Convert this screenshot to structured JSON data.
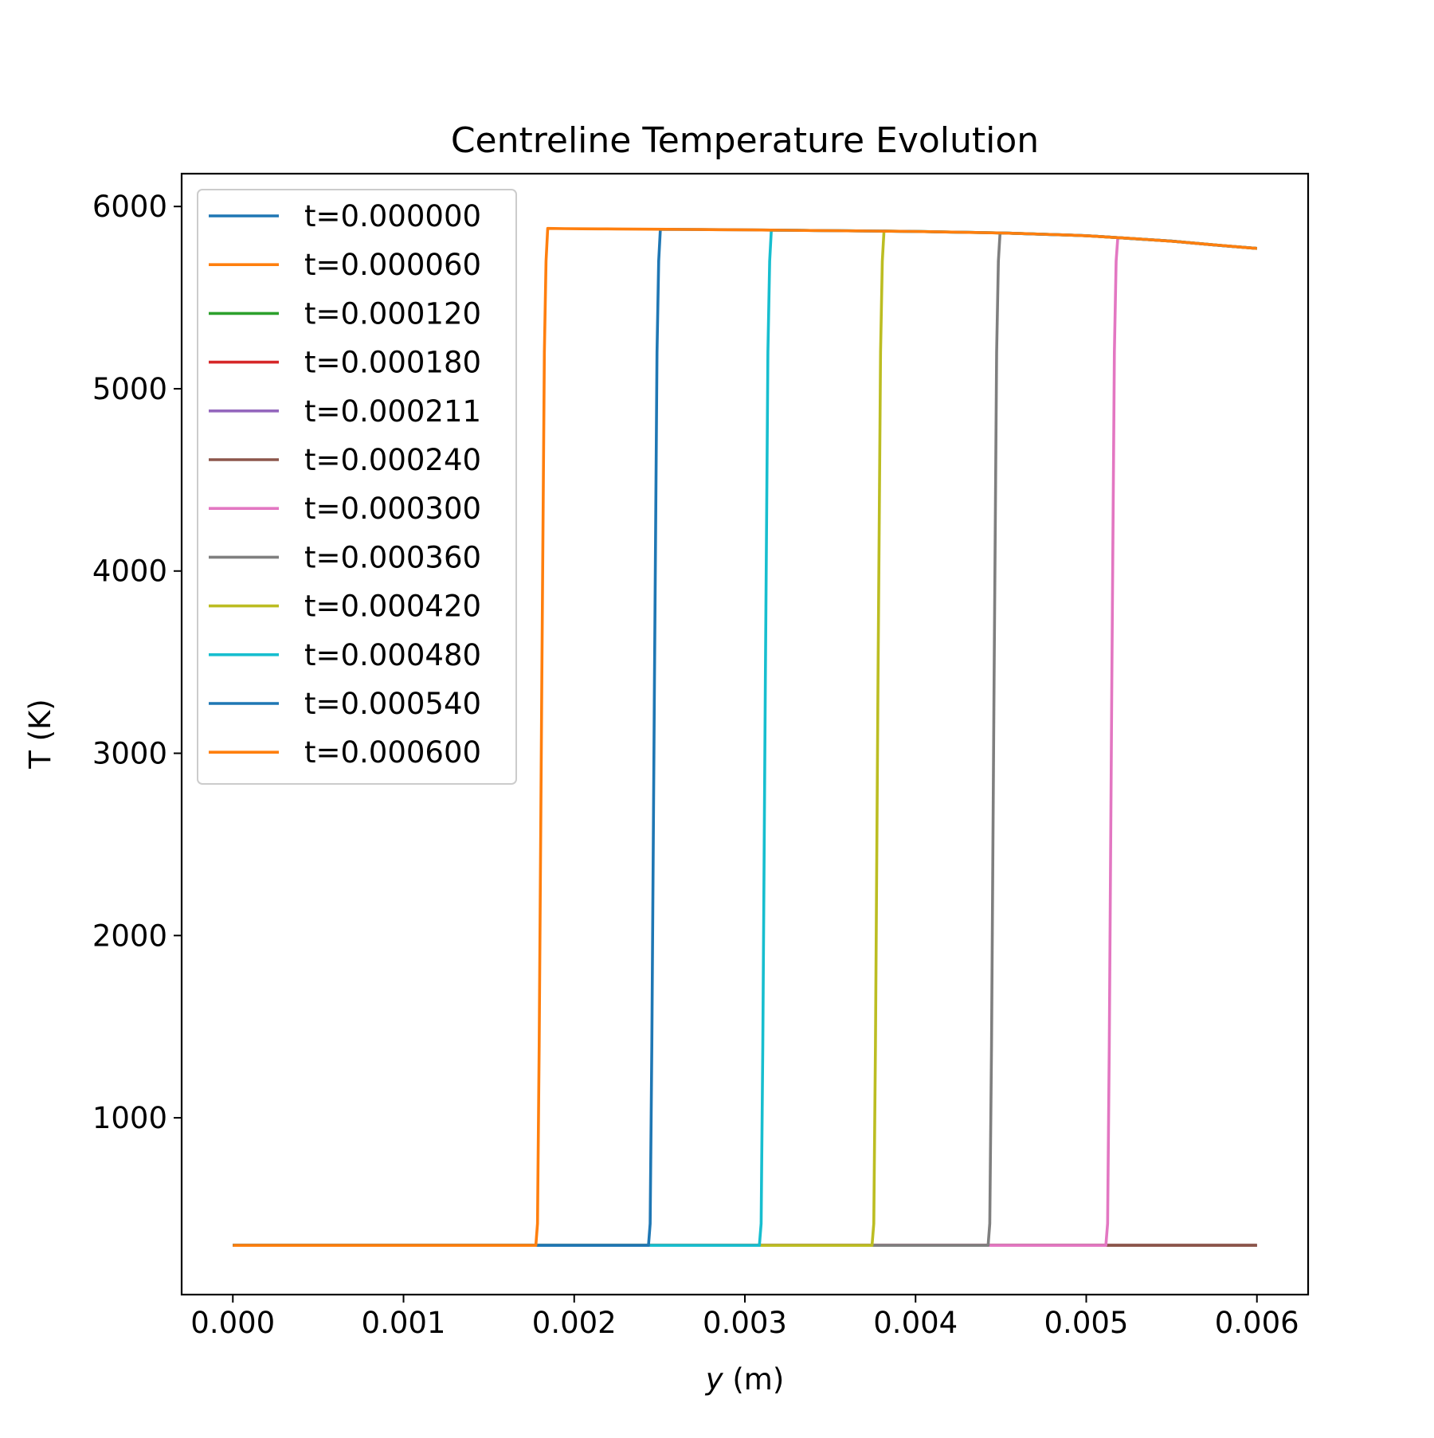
{
  "chart_data": {
    "type": "line",
    "title": "Centreline Temperature Evolution",
    "xlabel_var": "y",
    "xlabel_unit": " (m)",
    "ylabel": "T (K)",
    "xlim": [
      -0.0003,
      0.0063
    ],
    "ylim": [
      30,
      6180
    ],
    "xticks": [
      0.0,
      0.001,
      0.002,
      0.003,
      0.004,
      0.005,
      0.006
    ],
    "xtick_labels": [
      "0.000",
      "0.001",
      "0.002",
      "0.003",
      "0.004",
      "0.005",
      "0.006"
    ],
    "yticks": [
      1000,
      2000,
      3000,
      4000,
      5000,
      6000
    ],
    "ytick_labels": [
      "1000",
      "2000",
      "3000",
      "4000",
      "5000",
      "6000"
    ],
    "grid": false,
    "legend_position": "upper-left",
    "series": [
      {
        "name": "t=0.000000",
        "color": "#1f77b4",
        "front": null
      },
      {
        "name": "t=0.000060",
        "color": "#ff7f0e",
        "front": null
      },
      {
        "name": "t=0.000120",
        "color": "#2ca02c",
        "front": null
      },
      {
        "name": "t=0.000180",
        "color": "#d62728",
        "front": null
      },
      {
        "name": "t=0.000211",
        "color": "#9467bd",
        "front": null
      },
      {
        "name": "t=0.000240",
        "color": "#8c564b",
        "front": null
      },
      {
        "name": "t=0.000300",
        "color": "#e377c2",
        "front": 0.00515
      },
      {
        "name": "t=0.000360",
        "color": "#7f7f7f",
        "front": 0.00446
      },
      {
        "name": "t=0.000420",
        "color": "#bcbd22",
        "front": 0.00378
      },
      {
        "name": "t=0.000480",
        "color": "#17becf",
        "front": 0.00312
      },
      {
        "name": "t=0.000540",
        "color": "#1f77b4",
        "front": 0.00247
      },
      {
        "name": "t=0.000600",
        "color": "#ff7f0e",
        "front": 0.00181
      }
    ],
    "cold_temperature": 300,
    "hot_profile": {
      "y": [
        0.0018,
        0.002,
        0.003,
        0.004,
        0.0045,
        0.005,
        0.0055,
        0.0058,
        0.006
      ],
      "T": [
        5880,
        5878,
        5872,
        5863,
        5855,
        5840,
        5810,
        5785,
        5770
      ]
    }
  }
}
